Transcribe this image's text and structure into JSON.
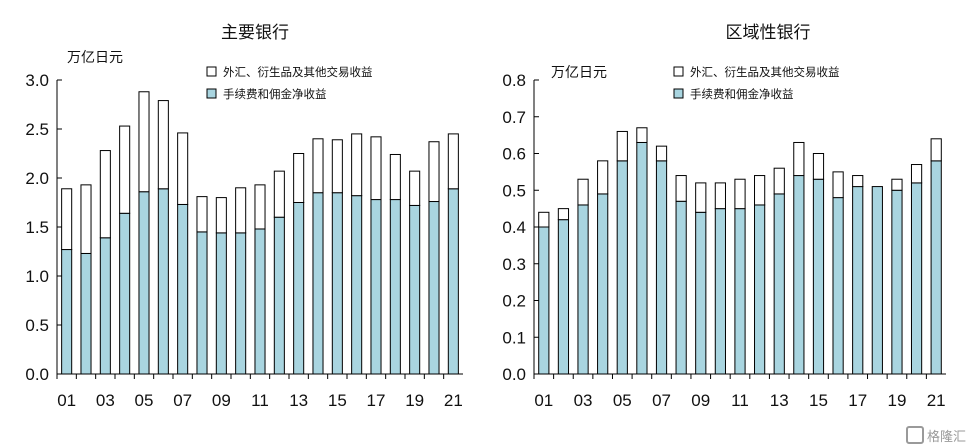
{
  "chart_data": [
    {
      "type": "bar",
      "stacked": true,
      "title": "主要银行",
      "ylabel": "万亿日元",
      "ylim": [
        0,
        3.0
      ],
      "yticks": [
        "0.0",
        "0.5",
        "1.0",
        "1.5",
        "2.0",
        "2.5",
        "3.0"
      ],
      "yticks_values": [
        0,
        0.5,
        1.0,
        1.5,
        2.0,
        2.5,
        3.0
      ],
      "xtick_labels": [
        "01",
        "03",
        "05",
        "07",
        "09",
        "11",
        "13",
        "15",
        "17",
        "19",
        "21"
      ],
      "categories": [
        "01",
        "02",
        "03",
        "04",
        "05",
        "06",
        "07",
        "08",
        "09",
        "10",
        "11",
        "12",
        "13",
        "14",
        "15",
        "16",
        "17",
        "18",
        "19",
        "20",
        "21"
      ],
      "legend": [
        "外汇、衍生品及其他交易收益",
        "手续费和佣金净收益"
      ],
      "series": [
        {
          "name": "手续费和佣金净收益",
          "color": "#a9d5e0",
          "values": [
            1.27,
            1.23,
            1.39,
            1.64,
            1.86,
            1.89,
            1.73,
            1.45,
            1.44,
            1.44,
            1.48,
            1.6,
            1.75,
            1.85,
            1.85,
            1.82,
            1.78,
            1.78,
            1.72,
            1.76,
            1.89
          ]
        },
        {
          "name": "外汇、衍生品及其他交易收益",
          "color": "#ffffff",
          "values": [
            0.62,
            0.7,
            0.89,
            0.89,
            1.02,
            0.9,
            0.73,
            0.36,
            0.36,
            0.46,
            0.45,
            0.47,
            0.5,
            0.55,
            0.54,
            0.63,
            0.64,
            0.46,
            0.35,
            0.61,
            0.56
          ]
        }
      ]
    },
    {
      "type": "bar",
      "stacked": true,
      "title": "区域性银行",
      "ylabel": "万亿日元",
      "ylim": [
        0,
        0.8
      ],
      "yticks": [
        "0.0",
        "0.1",
        "0.2",
        "0.3",
        "0.4",
        "0.5",
        "0.6",
        "0.7",
        "0.8"
      ],
      "yticks_values": [
        0,
        0.1,
        0.2,
        0.3,
        0.4,
        0.5,
        0.6,
        0.7,
        0.8
      ],
      "xtick_labels": [
        "01",
        "03",
        "05",
        "07",
        "09",
        "11",
        "13",
        "15",
        "17",
        "19",
        "21"
      ],
      "categories": [
        "01",
        "02",
        "03",
        "04",
        "05",
        "06",
        "07",
        "08",
        "09",
        "10",
        "11",
        "12",
        "13",
        "14",
        "15",
        "16",
        "17",
        "18",
        "19",
        "20",
        "21"
      ],
      "legend": [
        "外汇、衍生品及其他交易收益",
        "手续费和佣金净收益"
      ],
      "series": [
        {
          "name": "手续费和佣金净收益",
          "color": "#a9d5e0",
          "values": [
            0.4,
            0.42,
            0.46,
            0.49,
            0.58,
            0.63,
            0.58,
            0.47,
            0.44,
            0.45,
            0.45,
            0.46,
            0.49,
            0.54,
            0.53,
            0.48,
            0.51,
            0.51,
            0.5,
            0.52,
            0.58
          ]
        },
        {
          "name": "外汇、衍生品及其他交易收益",
          "color": "#ffffff",
          "values": [
            0.04,
            0.03,
            0.07,
            0.09,
            0.08,
            0.04,
            0.04,
            0.07,
            0.08,
            0.07,
            0.08,
            0.08,
            0.07,
            0.09,
            0.07,
            0.07,
            0.03,
            0.0,
            0.03,
            0.05,
            0.06
          ]
        }
      ]
    }
  ],
  "watermark": "格隆汇"
}
